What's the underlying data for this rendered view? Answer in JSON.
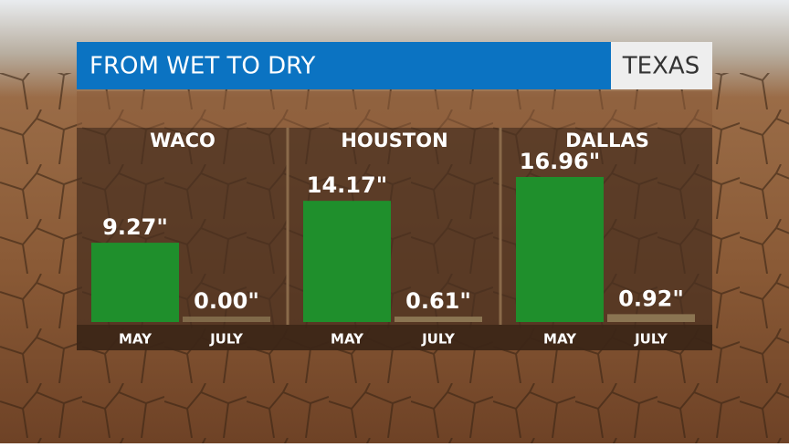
{
  "header": {
    "title": "FROM WET TO DRY",
    "region": "TEXAS"
  },
  "chart_data": [
    {
      "type": "bar",
      "title": "WACO",
      "categories": [
        "MAY",
        "JULY"
      ],
      "values": [
        9.27,
        0.0
      ],
      "value_labels": [
        "9.27\"",
        "0.00\""
      ],
      "colors": [
        "#1f8f2c",
        "#8b7552"
      ]
    },
    {
      "type": "bar",
      "title": "HOUSTON",
      "categories": [
        "MAY",
        "JULY"
      ],
      "values": [
        14.17,
        0.61
      ],
      "value_labels": [
        "14.17\"",
        "0.61\""
      ],
      "colors": [
        "#1f8f2c",
        "#8b7552"
      ]
    },
    {
      "type": "bar",
      "title": "DALLAS",
      "categories": [
        "MAY",
        "JULY"
      ],
      "values": [
        16.96,
        0.92
      ],
      "value_labels": [
        "16.96\"",
        "0.92\""
      ],
      "colors": [
        "#1f8f2c",
        "#8b7552"
      ]
    }
  ]
}
